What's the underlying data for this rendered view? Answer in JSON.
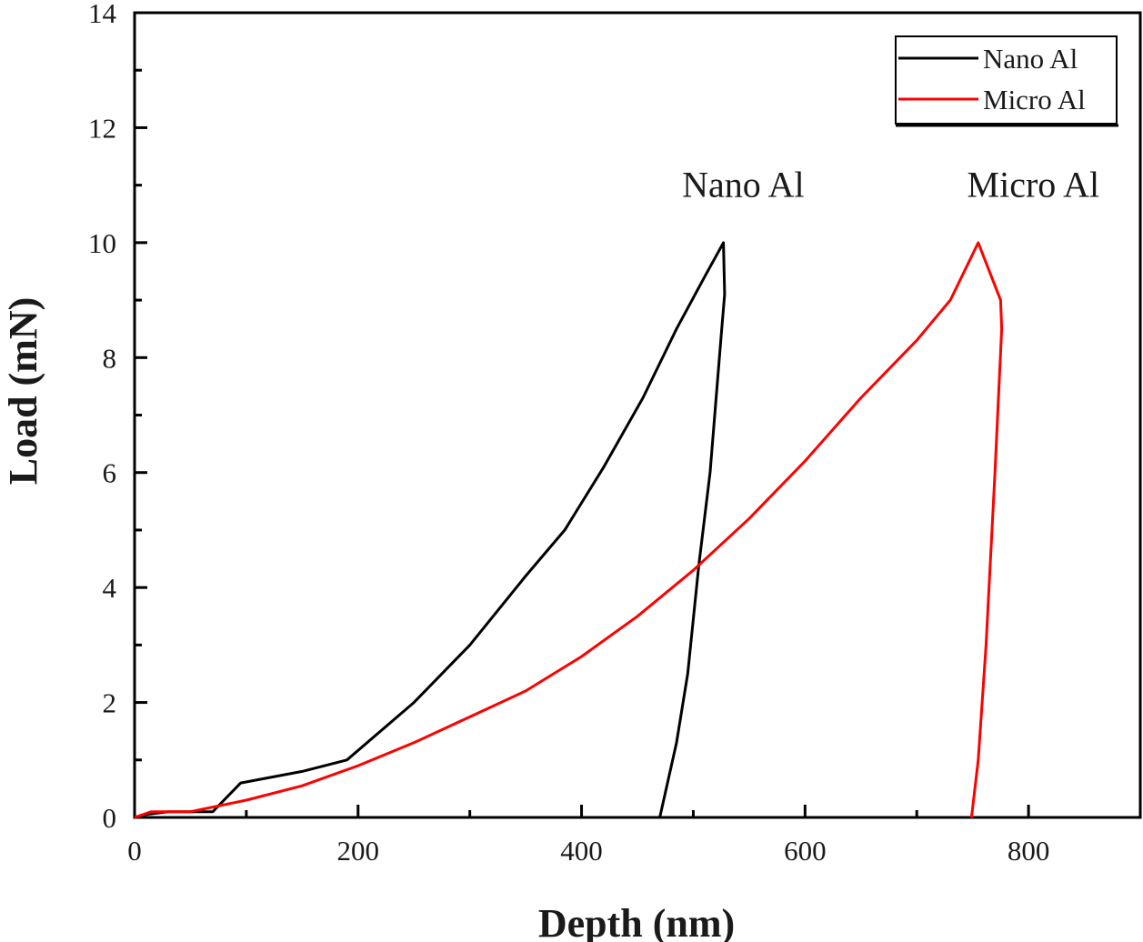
{
  "chart_data": {
    "type": "line",
    "title": "",
    "xlabel": "Depth (nm)",
    "ylabel": "Load (mN)",
    "xlim": [
      0,
      900
    ],
    "ylim": [
      0,
      14
    ],
    "xticks": [
      0,
      200,
      400,
      600,
      800
    ],
    "yticks": [
      0,
      2,
      4,
      6,
      8,
      10,
      12,
      14
    ],
    "x_minor_step": 100,
    "y_minor_step": 1,
    "grid": false,
    "legend_position": "top-right",
    "series": [
      {
        "name": "Nano Al",
        "color": "#000000",
        "x": [
          0,
          10,
          30,
          70,
          80,
          95,
          150,
          190,
          250,
          300,
          350,
          385,
          420,
          455,
          485,
          510,
          527,
          528,
          525,
          515,
          505,
          495,
          485,
          470
        ],
        "y": [
          0,
          0.05,
          0.1,
          0.1,
          0.3,
          0.6,
          0.8,
          1.0,
          2.0,
          3.0,
          4.2,
          5.0,
          6.1,
          7.3,
          8.5,
          9.4,
          10.0,
          9.1,
          8.4,
          6.0,
          4.4,
          2.5,
          1.3,
          0
        ]
      },
      {
        "name": "Micro Al",
        "color": "#ff0000",
        "x": [
          0,
          15,
          50,
          100,
          150,
          200,
          250,
          300,
          350,
          400,
          450,
          500,
          550,
          600,
          650,
          700,
          730,
          755,
          775,
          776,
          770,
          762,
          755,
          749
        ],
        "y": [
          0,
          0.1,
          0.1,
          0.3,
          0.55,
          0.9,
          1.3,
          1.75,
          2.2,
          2.8,
          3.5,
          4.3,
          5.2,
          6.2,
          7.3,
          8.3,
          9.0,
          10.0,
          9.0,
          8.5,
          6.0,
          3.0,
          1.0,
          0
        ]
      }
    ],
    "annotations": [
      {
        "text": "Nano Al",
        "x": 490,
        "y": 10.8
      },
      {
        "text": "Micro Al",
        "x": 745,
        "y": 10.8
      }
    ]
  }
}
